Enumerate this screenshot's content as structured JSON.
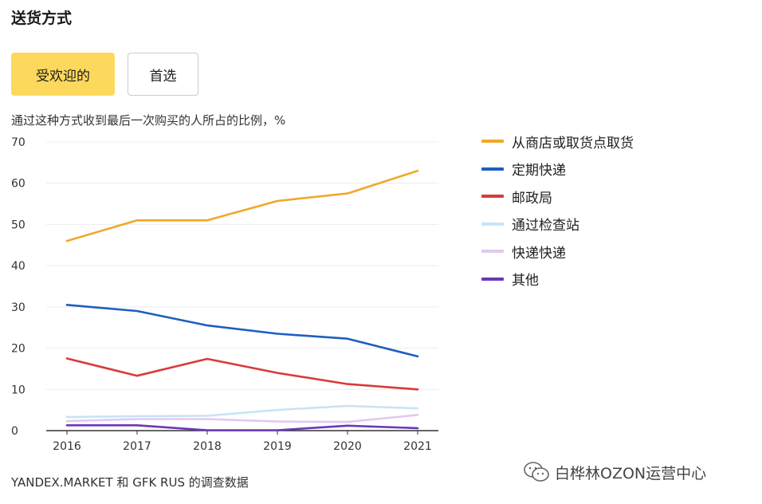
{
  "header": {
    "title": "送货方式"
  },
  "tabs": [
    {
      "label": "受欢迎的",
      "active": true
    },
    {
      "label": "首选",
      "active": false
    }
  ],
  "chart_subtitle": "通过这种方式收到最后一次购买的人所占的比例，%",
  "source_note": "YANDEX.MARKET 和 GFK RUS 的调查数据",
  "watermark": {
    "text": "白桦林OZON运营中心",
    "icon": "wechat-logo-icon"
  },
  "chart_data": {
    "type": "line",
    "x": [
      "2016",
      "2017",
      "2018",
      "2019",
      "2020",
      "2021"
    ],
    "ylim": [
      0,
      70
    ],
    "yticks": [
      0,
      10,
      20,
      30,
      40,
      50,
      60,
      70
    ],
    "grid": true,
    "legend_position": "right",
    "series": [
      {
        "name": "从商店或取货点取货",
        "color": "#f0a82a",
        "values": [
          46,
          51,
          51,
          55.7,
          57.5,
          63
        ]
      },
      {
        "name": "定期快递",
        "color": "#1e5fbf",
        "values": [
          30.5,
          29,
          25.5,
          23.5,
          22.3,
          18
        ]
      },
      {
        "name": "邮政局",
        "color": "#d93a3a",
        "values": [
          17.5,
          13.3,
          17.4,
          14,
          11.3,
          10
        ]
      },
      {
        "name": "通过检查站",
        "color": "#c7e4f7",
        "values": [
          3.3,
          3.5,
          3.6,
          5,
          6,
          5.4
        ]
      },
      {
        "name": "快递快递",
        "color": "#e3c8f2",
        "values": [
          2.3,
          2.8,
          2.8,
          2.2,
          2.1,
          3.8
        ]
      },
      {
        "name": "其他",
        "color": "#6a38b8",
        "values": [
          1.3,
          1.3,
          0.1,
          0.1,
          1.2,
          0.6
        ]
      }
    ]
  }
}
